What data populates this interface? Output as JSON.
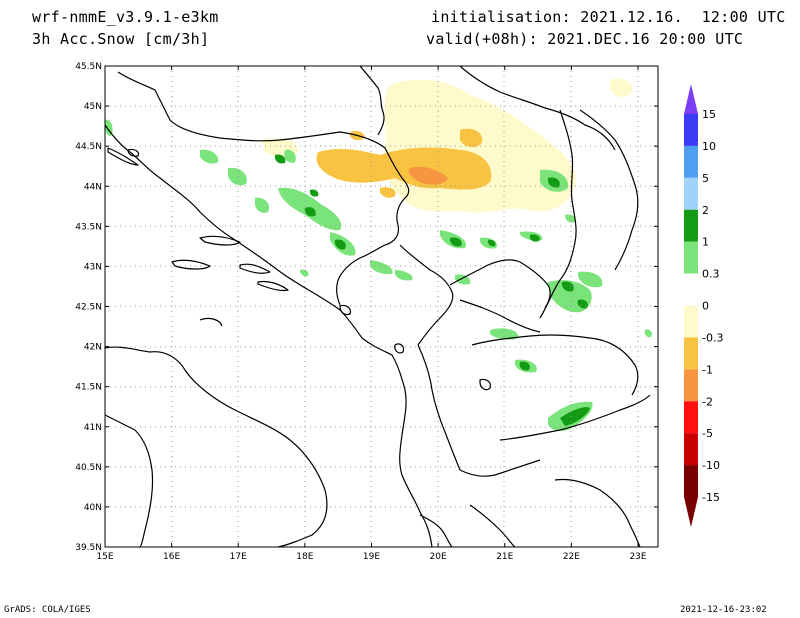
{
  "header": {
    "model": "wrf-nmmE_v3.9.1-e3km",
    "variable": "3h Acc.Snow [cm/3h]",
    "initialisation": "initialisation: 2021.12.16.  12:00 UTC",
    "valid": "valid(+08h): 2021.DEC.16 20:00 UTC"
  },
  "footer": {
    "left": "GrADS: COLA/IGES",
    "right": "2021-12-16-23:02"
  },
  "map": {
    "lon_range": [
      15,
      23.3
    ],
    "lat_range": [
      39.5,
      45.5
    ],
    "lon_ticks": [
      "15E",
      "16E",
      "17E",
      "18E",
      "19E",
      "20E",
      "21E",
      "22E",
      "23E"
    ],
    "lat_ticks": [
      "39.5N",
      "40N",
      "40.5N",
      "41N",
      "41.5N",
      "42N",
      "42.5N",
      "43N",
      "43.5N",
      "44N",
      "44.5N",
      "45N",
      "45.5N"
    ],
    "grid": "dotted"
  },
  "colorbar": {
    "labels": [
      "15",
      "10",
      "5",
      "2",
      "1",
      "0.3",
      "0",
      "-0.3",
      "-1",
      "-2",
      "-5",
      "-10",
      "-15"
    ],
    "colors": [
      "#7d3cf5",
      "#3c3cf5",
      "#4f9ff2",
      "#9fd3fa",
      "#139c13",
      "#7ae37a",
      "#ffffff",
      "#fffacc",
      "#f7c340",
      "#f79540",
      "#ff1010",
      "#c80000",
      "#7a0000"
    ]
  }
}
